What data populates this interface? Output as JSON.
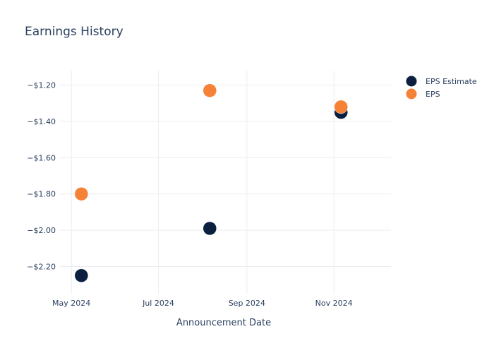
{
  "chart_data": {
    "type": "scatter",
    "title": "Earnings History",
    "xlabel": "Announcement Date",
    "ylabel": "",
    "x_ticks": [
      "May 2024",
      "Jul 2024",
      "Sep 2024",
      "Nov 2024"
    ],
    "y_ticks": [
      "−$1.20",
      "−$1.40",
      "−$1.60",
      "−$1.80",
      "−$2.00",
      "−$2.20"
    ],
    "ylim": [
      -2.35,
      -1.12
    ],
    "xlim": [
      "2024-04-23",
      "2024-12-11"
    ],
    "grid": true,
    "legend": "top-right",
    "series": [
      {
        "name": "EPS Estimate",
        "color": "#0b1f3f",
        "x": [
          "2024-05-08",
          "2024-08-06",
          "2024-11-06"
        ],
        "y": [
          -2.25,
          -1.99,
          -1.35
        ]
      },
      {
        "name": "EPS",
        "color": "#f58236",
        "x": [
          "2024-05-08",
          "2024-08-06",
          "2024-11-06"
        ],
        "y": [
          -1.8,
          -1.23,
          -1.32
        ]
      }
    ]
  }
}
